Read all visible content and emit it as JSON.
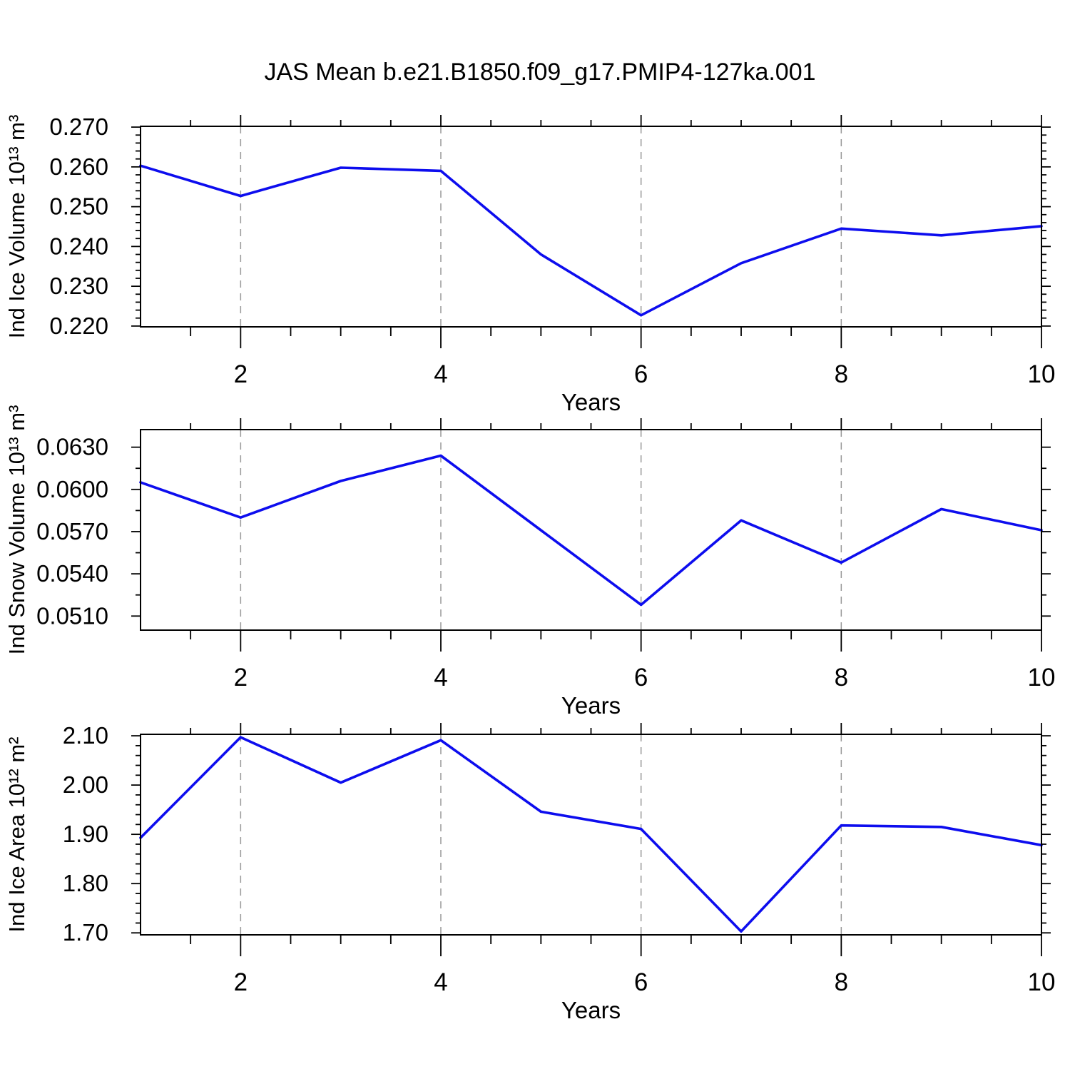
{
  "title": "JAS Mean b.e21.B1850.f09_g17.PMIP4-127ka.001",
  "line_color": "#0D0DEE",
  "grid_color": "#999999",
  "frame_color": "#000000",
  "x_axis": {
    "label": "Years",
    "range": [
      1,
      10
    ],
    "tick_values": [
      2,
      4,
      6,
      8,
      10
    ],
    "tick_labels": [
      "2",
      "4",
      "6",
      "8",
      "10"
    ],
    "minor_step": 0.5,
    "grid_values": [
      2,
      4,
      6,
      8
    ]
  },
  "chart_data": [
    {
      "id": "ice-volume",
      "type": "line",
      "ylabel": "Ind Ice Volume 10¹³ m³",
      "xlabel": "Years",
      "x": [
        1,
        2,
        3,
        4,
        5,
        6,
        7,
        8,
        9,
        10
      ],
      "values": [
        0.2603,
        0.2527,
        0.2598,
        0.259,
        0.238,
        0.2227,
        0.2358,
        0.2445,
        0.2428,
        0.2451
      ],
      "ytick_values": [
        0.22,
        0.23,
        0.24,
        0.25,
        0.26,
        0.27
      ],
      "ytick_labels": [
        "0.220",
        "0.230",
        "0.240",
        "0.250",
        "0.260",
        "0.270"
      ],
      "y_minor_step": 0.002,
      "ylim": [
        0.2198,
        0.2702
      ],
      "grid": "vertical-dashed",
      "legend": "none"
    },
    {
      "id": "snow-volume",
      "type": "line",
      "ylabel": "Ind Snow Volume 10¹³ m³",
      "xlabel": "Years",
      "x": [
        1,
        2,
        3,
        4,
        5,
        6,
        7,
        8,
        9,
        10
      ],
      "values": [
        0.0605,
        0.058,
        0.0606,
        0.0624,
        0.0571,
        0.0518,
        0.0578,
        0.0548,
        0.0586,
        0.0571
      ],
      "ytick_values": [
        0.051,
        0.054,
        0.057,
        0.06,
        0.063
      ],
      "ytick_labels": [
        "0.0510",
        "0.0540",
        "0.0570",
        "0.0600",
        "0.0630"
      ],
      "y_minor_step": 0.0015,
      "ylim": [
        0.05,
        0.06425
      ],
      "grid": "vertical-dashed",
      "legend": "none"
    },
    {
      "id": "ice-area",
      "type": "line",
      "ylabel": "Ind Ice Area 10¹² m²",
      "xlabel": "Years",
      "x": [
        1,
        2,
        3,
        4,
        5,
        6,
        7,
        8,
        9,
        10
      ],
      "values": [
        1.893,
        2.097,
        2.005,
        2.091,
        1.946,
        1.911,
        1.703,
        1.918,
        1.915,
        1.878
      ],
      "ytick_values": [
        1.7,
        1.8,
        1.9,
        2.0,
        2.1
      ],
      "ytick_labels": [
        "1.70",
        "1.80",
        "1.90",
        "2.00",
        "2.10"
      ],
      "y_minor_step": 0.02,
      "ylim": [
        1.696,
        2.103
      ],
      "grid": "vertical-dashed",
      "legend": "none"
    }
  ]
}
